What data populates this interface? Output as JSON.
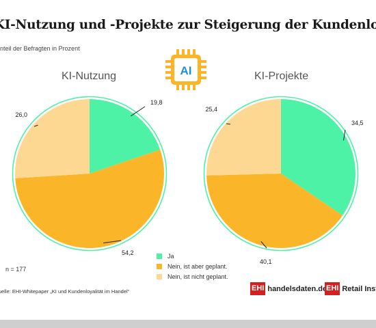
{
  "title": "KI-Nutzung und -Projekte zur Steigerung der Kundenloyalität",
  "subtitle": "Anteil der Befragten in Prozent",
  "ai_icon_label": "AI",
  "n_label": "n = 177",
  "source": "Quelle: EHI-Whitepaper „KI und Kundenloyalität im Handel“",
  "brands": [
    {
      "box": "EHI",
      "text": "handelsdaten.de"
    },
    {
      "box": "EHI",
      "text": "Retail Institute"
    }
  ],
  "colors": {
    "ja": "#4ef2a6",
    "geplant": "#fbb528",
    "nicht_geplant": "#fcd892",
    "ring": "#4ef2a6",
    "brand_red": "#d42020"
  },
  "legend": [
    {
      "label": "Ja",
      "color": "#4ef2a6"
    },
    {
      "label": "Nein, ist aber geplant.",
      "color": "#fbb528"
    },
    {
      "label": "Nein, ist nicht geplant.",
      "color": "#fcd892"
    }
  ],
  "chart_data": [
    {
      "type": "pie",
      "title": "KI-Nutzung",
      "categories": [
        "Ja",
        "Nein, ist aber geplant.",
        "Nein, ist nicht geplant."
      ],
      "values": [
        19.8,
        54.2,
        26.0
      ],
      "value_labels": [
        "19,8",
        "54,2",
        "26,0"
      ]
    },
    {
      "type": "pie",
      "title": "KI-Projekte",
      "categories": [
        "Ja",
        "Nein, ist aber geplant.",
        "Nein, ist nicht geplant."
      ],
      "values": [
        34.5,
        40.1,
        25.4
      ],
      "value_labels": [
        "34,5",
        "40,1",
        "25,4"
      ]
    }
  ]
}
